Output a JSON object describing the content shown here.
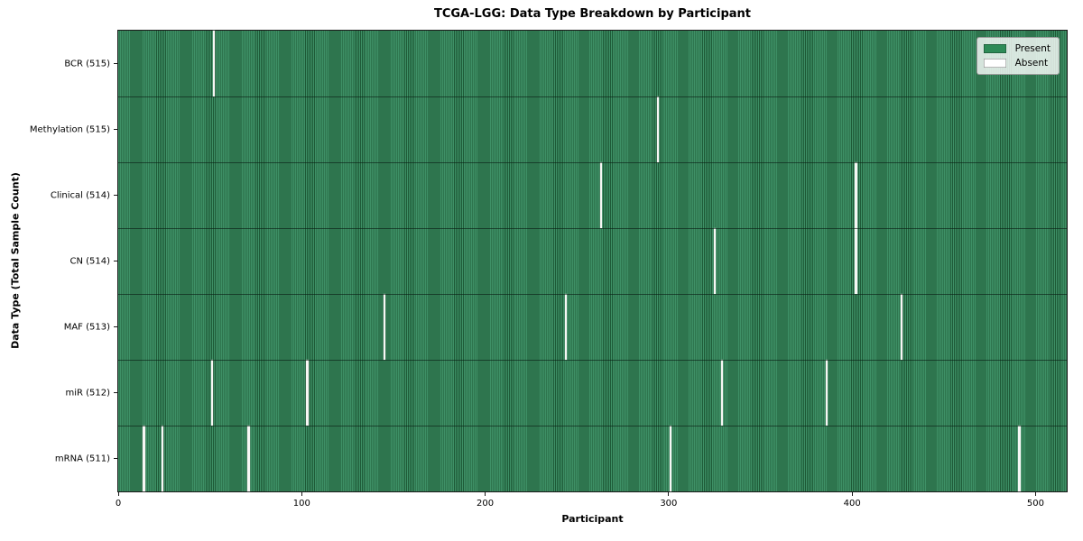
{
  "chart_data": {
    "type": "heatmap",
    "title": "TCGA-LGG: Data Type Breakdown by Participant",
    "xlabel": "Participant",
    "ylabel": "Data Type (Total Sample Count)",
    "x_ticks": [
      0,
      100,
      200,
      300,
      400,
      500
    ],
    "x_range": [
      0,
      516
    ],
    "total_participants": 516,
    "grid": false,
    "legend_position": "upper right",
    "legend": [
      {
        "label": "Present",
        "color": "#2e8b57"
      },
      {
        "label": "Absent",
        "color": "#ffffff"
      }
    ],
    "colors": {
      "present": "#2e8b57",
      "present_stripe_light": "#3e9066",
      "present_stripe_dark": "#1e5a37",
      "absent": "#ffffff",
      "spine": "#1a1a1a"
    },
    "rows": [
      {
        "label": "BCR (515)",
        "data_type": "BCR",
        "present_count": 515,
        "absent_participants": [
          52
        ]
      },
      {
        "label": "Methylation (515)",
        "data_type": "Methylation",
        "present_count": 515,
        "absent_participants": [
          294
        ]
      },
      {
        "label": "Clinical (514)",
        "data_type": "Clinical",
        "present_count": 514,
        "absent_participants": [
          263,
          402
        ]
      },
      {
        "label": "CN (514)",
        "data_type": "CN",
        "present_count": 514,
        "absent_participants": [
          325,
          402
        ]
      },
      {
        "label": "MAF (513)",
        "data_type": "MAF",
        "present_count": 513,
        "absent_participants": [
          145,
          244,
          427
        ]
      },
      {
        "label": "miR (512)",
        "data_type": "miR",
        "present_count": 512,
        "absent_participants": [
          51,
          103,
          329,
          386
        ]
      },
      {
        "label": "mRNA (511)",
        "data_type": "mRNA",
        "present_count": 511,
        "absent_participants": [
          14,
          24,
          71,
          301,
          491
        ]
      }
    ]
  }
}
